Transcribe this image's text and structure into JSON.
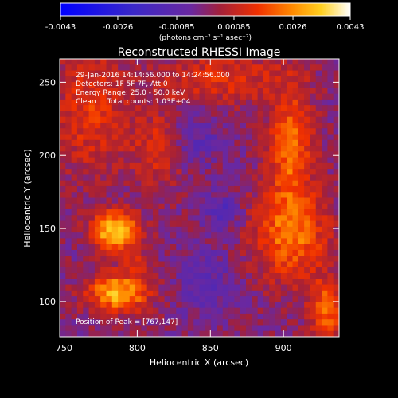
{
  "chart_data": {
    "type": "heatmap",
    "title": "Reconstructed RHESSI Image",
    "xlabel": "Heliocentric X (arcsec)",
    "ylabel": "Heliocentric Y (arcsec)",
    "xlim": [
      747,
      938
    ],
    "ylim": [
      76,
      266
    ],
    "x_ticks": [
      750,
      800,
      850,
      900
    ],
    "y_ticks": [
      100,
      150,
      200,
      250
    ],
    "colorbar": {
      "min": -0.0043,
      "max": 0.0043,
      "tick_values": [
        -0.0043,
        -0.0026,
        -0.00085,
        0.00085,
        0.0026,
        0.0043
      ],
      "tick_labels": [
        "-0.0043",
        "-0.0026",
        "-0.00085",
        "0.00085",
        "0.0026",
        "0.0043"
      ],
      "unit_label": "(photons cm⁻² s⁻¹ asec⁻²)"
    },
    "annotations": [
      "29-Jan-2016 14:14:56.000 to 14:24:56.000",
      "Detectors: 1F 5F 7F, Att 0",
      "Energy Range: 25.0 - 50.0 keV",
      "Clean     Total counts: 1.03E+04"
    ],
    "peak_label": "Position of Peak = [767,147]",
    "peak": {
      "x": 767,
      "y": 147
    },
    "grid_cols": 48,
    "grid_rows": 48,
    "hot_regions": [
      {
        "x": 785,
        "y": 148,
        "sx": 11,
        "sy": 9,
        "amp": 0.0036
      },
      {
        "x": 787,
        "y": 106,
        "sx": 14,
        "sy": 9,
        "amp": 0.0032
      },
      {
        "x": 815,
        "y": 205,
        "sx": 12,
        "sy": 18,
        "amp": 0.0013
      },
      {
        "x": 768,
        "y": 230,
        "sx": 18,
        "sy": 30,
        "amp": 0.0014
      },
      {
        "x": 858,
        "y": 252,
        "sx": 32,
        "sy": 12,
        "amp": 0.0013
      },
      {
        "x": 905,
        "y": 205,
        "sx": 10,
        "sy": 28,
        "amp": 0.0022
      },
      {
        "x": 905,
        "y": 145,
        "sx": 18,
        "sy": 22,
        "amp": 0.0022
      },
      {
        "x": 930,
        "y": 95,
        "sx": 8,
        "sy": 14,
        "amp": 0.0022
      },
      {
        "x": 800,
        "y": 126,
        "sx": 6,
        "sy": 5,
        "amp": 0.0011
      }
    ],
    "cold_regions": [
      {
        "x": 858,
        "y": 162,
        "sx": 8,
        "sy": 9,
        "amp": -0.0012
      },
      {
        "x": 840,
        "y": 210,
        "sx": 14,
        "sy": 12,
        "amp": -0.0009
      },
      {
        "x": 848,
        "y": 112,
        "sx": 14,
        "sy": 16,
        "amp": -0.0009
      }
    ]
  }
}
